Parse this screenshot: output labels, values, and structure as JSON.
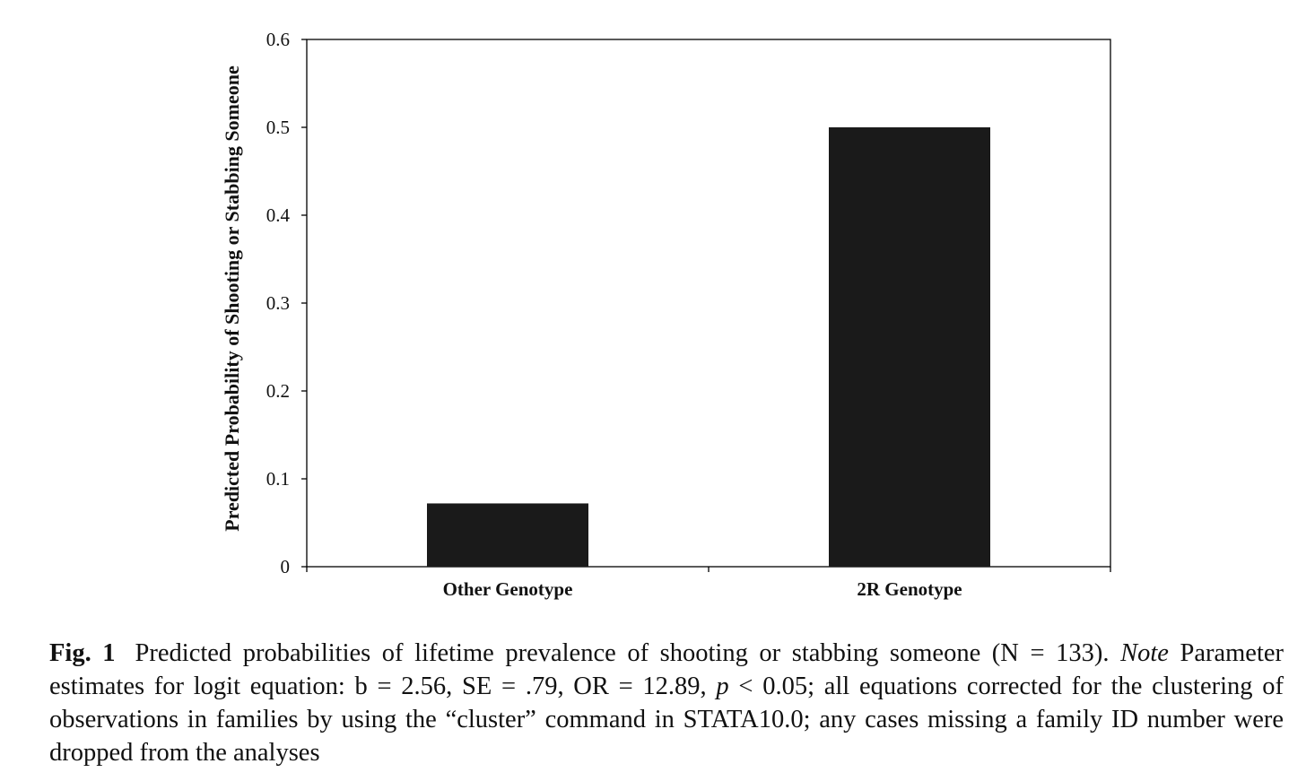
{
  "chart_data": {
    "type": "bar",
    "categories": [
      "Other Genotype",
      "2R Genotype"
    ],
    "values": [
      0.072,
      0.5
    ],
    "title": "",
    "xlabel": "",
    "ylabel": "Predicted Probability of Shooting or Stabbing Someone",
    "ylim": [
      0,
      0.6
    ],
    "yticks": [
      0,
      0.1,
      0.2,
      0.3,
      0.4,
      0.5,
      0.6
    ],
    "ytick_labels": [
      "0",
      "0.1",
      "0.2",
      "0.3",
      "0.4",
      "0.5",
      "0.6"
    ],
    "grid": false,
    "bar_color": "#1a1a1a"
  },
  "caption": {
    "label": "Fig. 1",
    "text_1": "Predicted probabilities of lifetime prevalence of shooting or stabbing someone (N = 133).",
    "note": "Note",
    "text_2": "Parameter estimates for logit equation: b = 2.56, SE = .79, OR = 12.89,",
    "p_symbol": "p",
    "text_3": "< 0.05; all equations corrected for the clustering of observations in families by using the “cluster” command in STATA10.0; any cases missing a family ID number were dropped from the analyses"
  }
}
